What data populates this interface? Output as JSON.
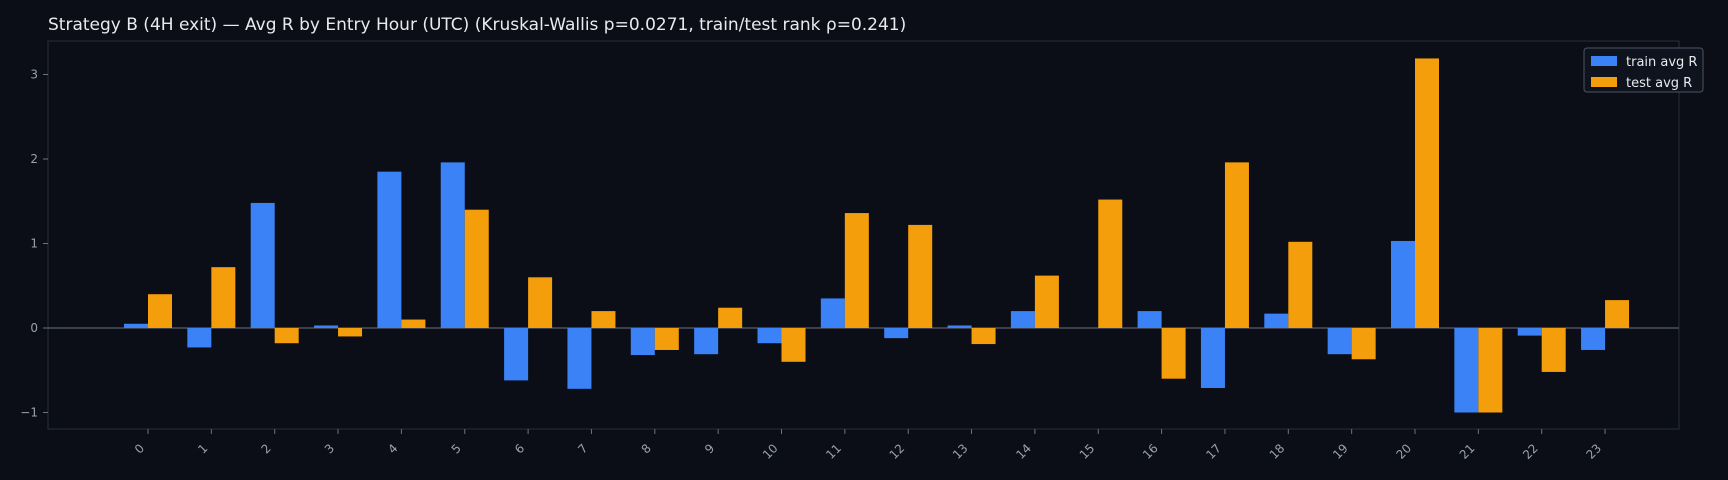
{
  "chart_data": {
    "type": "bar",
    "title": "Strategy B (4H exit) — Avg R by Entry Hour (UTC) (Kruskal-Wallis p=0.0271, train/test rank ρ=0.241)",
    "xlabel": "",
    "ylabel": "",
    "categories": [
      "0",
      "1",
      "2",
      "3",
      "4",
      "5",
      "6",
      "7",
      "8",
      "9",
      "10",
      "11",
      "12",
      "13",
      "14",
      "15",
      "16",
      "17",
      "18",
      "19",
      "20",
      "21",
      "22",
      "23"
    ],
    "series": [
      {
        "name": "train avg R",
        "color": "#3b82f6",
        "values": [
          0.05,
          -0.23,
          1.48,
          0.03,
          1.85,
          1.96,
          -0.62,
          -0.72,
          -0.32,
          -0.31,
          -0.18,
          0.35,
          -0.12,
          0.03,
          0.2,
          0.0,
          0.2,
          -0.71,
          0.17,
          -0.31,
          1.03,
          -1.0,
          -0.09,
          -0.26
        ]
      },
      {
        "name": "test avg R",
        "color": "#f59e0b",
        "values": [
          0.4,
          0.72,
          -0.18,
          -0.1,
          0.1,
          1.4,
          0.6,
          0.2,
          -0.26,
          0.24,
          -0.4,
          1.36,
          1.22,
          -0.19,
          0.62,
          1.52,
          -0.6,
          1.96,
          1.02,
          -0.37,
          3.19,
          -1.0,
          -0.52,
          0.33
        ]
      }
    ],
    "yticks": [
      "−1",
      "0",
      "1",
      "2",
      "3"
    ],
    "ylim": [
      -1.2,
      3.4
    ],
    "grid": false,
    "legend": "top-right",
    "background": "#0b0e17",
    "axis_color": "#2a2f3a"
  }
}
